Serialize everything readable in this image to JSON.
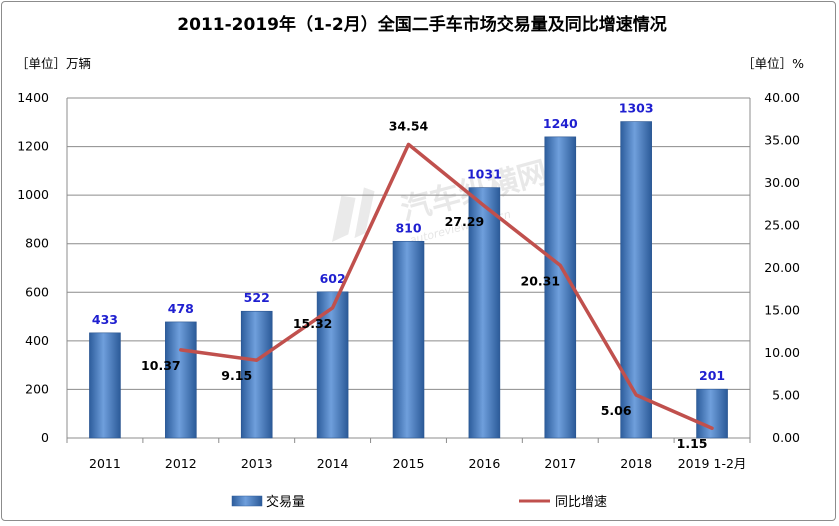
{
  "chart_data": {
    "type": "bar",
    "title": "2011-2019年（1-2月）全国二手车市场交易量及同比增速情况",
    "y_left_unit": "［单位］万辆",
    "y_right_unit": "［单位］%",
    "categories": [
      "2011",
      "2012",
      "2013",
      "2014",
      "2015",
      "2016",
      "2017",
      "2018",
      "2019 1-2月"
    ],
    "series": [
      {
        "name": "交易量",
        "type": "bar",
        "axis": "left",
        "color": "#4a7ebb",
        "values": [
          433,
          478,
          522,
          602,
          810,
          1031,
          1240,
          1303,
          201
        ]
      },
      {
        "name": "同比增速",
        "type": "line",
        "axis": "right",
        "color": "#c0504d",
        "values": [
          null,
          10.37,
          9.15,
          15.32,
          34.54,
          27.29,
          20.31,
          5.06,
          1.15
        ]
      }
    ],
    "y_left": {
      "min": 0,
      "max": 1400,
      "step": 200,
      "ticks": [
        "0",
        "200",
        "400",
        "600",
        "800",
        "1000",
        "1200",
        "1400"
      ]
    },
    "y_right": {
      "min": 0,
      "max": 40,
      "step": 5,
      "ticks": [
        "0.00",
        "5.00",
        "10.00",
        "15.00",
        "20.00",
        "25.00",
        "30.00",
        "35.00",
        "40.00"
      ]
    },
    "grid": true,
    "legend_position": "bottom",
    "watermark": {
      "brand": "汽车纵横网",
      "url": "autoreview.com.cn"
    }
  }
}
